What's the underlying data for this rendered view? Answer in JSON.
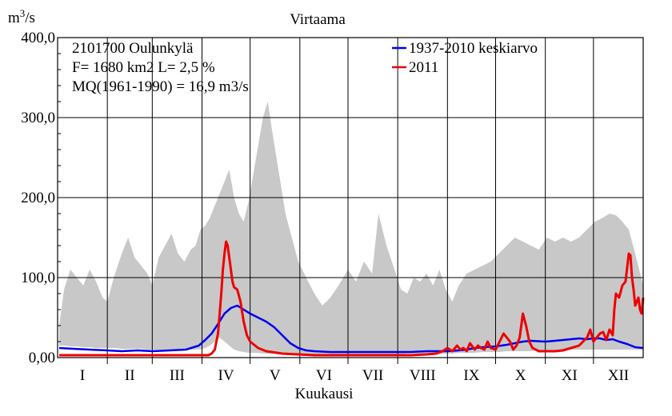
{
  "chart_data": {
    "type": "area",
    "title": "Virtaama",
    "ylabel_base": "m",
    "ylabel_sup": "3",
    "ylabel_tail": "/s",
    "xlabel": "Kuukausi",
    "ylim": [
      0,
      400
    ],
    "xlim_days": [
      0,
      365
    ],
    "y_ticks": [
      {
        "value": 0,
        "label": "0,00"
      },
      {
        "value": 100,
        "label": "100,0"
      },
      {
        "value": 200,
        "label": "200,0"
      },
      {
        "value": 300,
        "label": "300,0"
      },
      {
        "value": 400,
        "label": "400,0"
      }
    ],
    "months": [
      "I",
      "II",
      "III",
      "IV",
      "V",
      "VI",
      "VII",
      "VIII",
      "IX",
      "X",
      "XI",
      "XII"
    ],
    "month_days": [
      31,
      28,
      31,
      30,
      31,
      30,
      31,
      31,
      30,
      31,
      30,
      31
    ],
    "grid": true,
    "info_lines": [
      "2101700 Oulunkylä",
      "F=   1680 km2 L=  2,5 %",
      "MQ(1961-1990) = 16,9 m3/s"
    ],
    "legend_position": "top-right",
    "colors": {
      "range": "#c8c8c8",
      "mean": "#0000ee",
      "year": "#ee0000"
    },
    "series": [
      {
        "name": "",
        "role": "range",
        "x": [
          1,
          4,
          8,
          12,
          16,
          20,
          24,
          28,
          31,
          35,
          40,
          44,
          48,
          52,
          56,
          59,
          63,
          67,
          71,
          75,
          79,
          83,
          86,
          89,
          92,
          95,
          98,
          101,
          104,
          107,
          110,
          113,
          116,
          119,
          122,
          125,
          128,
          131,
          134,
          138,
          142,
          146,
          150,
          155,
          160,
          165,
          170,
          175,
          181,
          186,
          191,
          196,
          200,
          205,
          210,
          214,
          218,
          222,
          226,
          230,
          234,
          238,
          242,
          246,
          250,
          255,
          260,
          265,
          270,
          275,
          280,
          285,
          290,
          295,
          300,
          305,
          310,
          315,
          320,
          325,
          330,
          335,
          340,
          344,
          348,
          352,
          356,
          360,
          365
        ],
        "y": [
          40,
          85,
          110,
          100,
          90,
          110,
          95,
          75,
          70,
          100,
          130,
          150,
          125,
          115,
          105,
          90,
          125,
          140,
          155,
          130,
          120,
          135,
          140,
          160,
          165,
          175,
          190,
          205,
          220,
          235,
          200,
          180,
          170,
          195,
          230,
          265,
          300,
          320,
          280,
          230,
          180,
          150,
          120,
          100,
          80,
          65,
          75,
          90,
          110,
          95,
          120,
          105,
          180,
          140,
          110,
          85,
          80,
          100,
          95,
          105,
          90,
          110,
          85,
          70,
          90,
          105,
          110,
          115,
          120,
          130,
          140,
          150,
          145,
          140,
          135,
          150,
          145,
          150,
          145,
          150,
          160,
          170,
          175,
          180,
          178,
          170,
          160,
          130,
          90
        ],
        "y_low": [
          15,
          15,
          14,
          14,
          13,
          13,
          12,
          12,
          12,
          12,
          11,
          11,
          11,
          11,
          10,
          10,
          10,
          10,
          10,
          10,
          10,
          10,
          10,
          10,
          12,
          15,
          20,
          25,
          20,
          15,
          10,
          8,
          7,
          6,
          6,
          6,
          5,
          5,
          5,
          5,
          5,
          5,
          5,
          5,
          4,
          4,
          4,
          4,
          4,
          4,
          4,
          4,
          4,
          4,
          4,
          4,
          5,
          5,
          5,
          5,
          5,
          5,
          5,
          5,
          6,
          6,
          6,
          7,
          7,
          7,
          8,
          8,
          8,
          8,
          9,
          9,
          9,
          10,
          10,
          10,
          10,
          10,
          10,
          10,
          10,
          10,
          10,
          10,
          10
        ]
      },
      {
        "name": "1937-2010 keskiarvo",
        "role": "mean",
        "x": [
          1,
          10,
          20,
          31,
          40,
          50,
          59,
          70,
          80,
          88,
          92,
          96,
          100,
          104,
          108,
          112,
          116,
          120,
          125,
          130,
          135,
          140,
          145,
          150,
          155,
          160,
          170,
          181,
          190,
          200,
          212,
          220,
          230,
          243,
          250,
          255,
          260,
          265,
          273,
          280,
          285,
          290,
          295,
          304,
          310,
          315,
          320,
          325,
          330,
          334,
          338,
          342,
          346,
          350,
          355,
          360,
          365
        ],
        "y": [
          12,
          11,
          10,
          9,
          8,
          9,
          8,
          9,
          10,
          15,
          22,
          30,
          42,
          55,
          62,
          65,
          60,
          55,
          50,
          45,
          38,
          28,
          18,
          12,
          9,
          8,
          7,
          7,
          7,
          7,
          7,
          7,
          8,
          8,
          9,
          10,
          12,
          13,
          14,
          16,
          18,
          20,
          21,
          20,
          21,
          22,
          23,
          24,
          23,
          24,
          24,
          22,
          23,
          20,
          17,
          13,
          12
        ]
      },
      {
        "name": "2011",
        "role": "year",
        "x": [
          1,
          15,
          31,
          45,
          59,
          75,
          88,
          94,
          96,
          98,
          100,
          101,
          102,
          103,
          104,
          105,
          106,
          107,
          108,
          109,
          110,
          112,
          114,
          116,
          118,
          120,
          125,
          130,
          140,
          150,
          160,
          181,
          200,
          212,
          220,
          230,
          236,
          240,
          243,
          246,
          249,
          251,
          253,
          255,
          257,
          260,
          262,
          264,
          266,
          268,
          270,
          273,
          278,
          282,
          284,
          286,
          288,
          290,
          292,
          294,
          296,
          298,
          300,
          304,
          310,
          315,
          320,
          325,
          330,
          332,
          334,
          336,
          338,
          340,
          342,
          344,
          346,
          347,
          348,
          350,
          352,
          354,
          356,
          357,
          358,
          359,
          360,
          362,
          363,
          364,
          365
        ],
        "y": [
          3,
          3,
          3,
          3,
          3,
          3,
          3,
          3,
          5,
          10,
          30,
          55,
          80,
          110,
          130,
          145,
          140,
          125,
          110,
          95,
          88,
          85,
          70,
          45,
          28,
          20,
          12,
          8,
          5,
          4,
          3,
          3,
          3,
          3,
          3,
          4,
          5,
          8,
          12,
          8,
          15,
          10,
          12,
          8,
          18,
          10,
          15,
          12,
          10,
          20,
          12,
          10,
          30,
          20,
          10,
          15,
          25,
          55,
          40,
          20,
          12,
          10,
          8,
          8,
          8,
          9,
          12,
          15,
          25,
          35,
          20,
          25,
          30,
          32,
          22,
          35,
          28,
          60,
          80,
          75,
          90,
          95,
          130,
          128,
          100,
          85,
          65,
          75,
          60,
          55,
          75
        ]
      }
    ]
  }
}
